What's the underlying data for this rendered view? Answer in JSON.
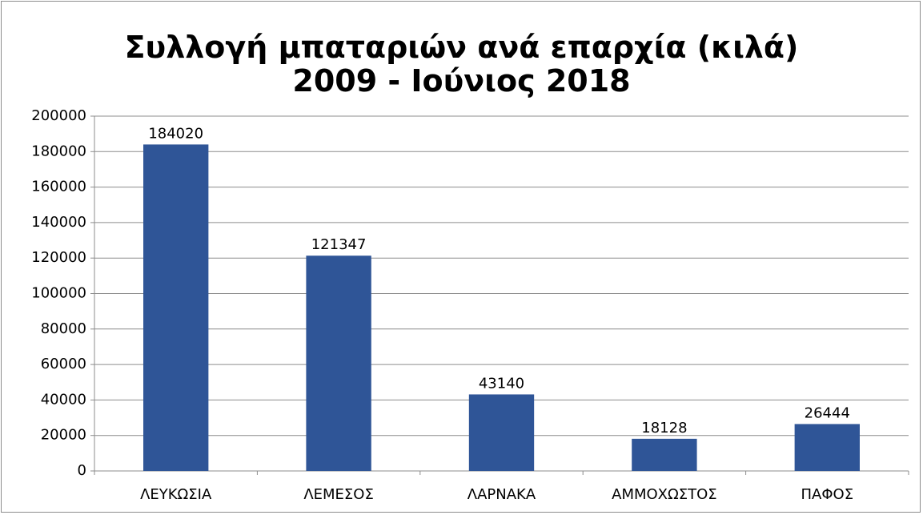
{
  "chart_data": {
    "type": "bar",
    "title": "Συλλογή μπαταριών ανά επαρχία (κιλά) 2009 - Ιούνιος 2018",
    "categories": [
      "ΛΕΥΚΩΣΙΑ",
      "ΛΕΜΕΣΟΣ",
      "ΛΑΡΝΑΚΑ",
      "ΑΜΜΟΧΩΣΤΟΣ",
      "ΠΑΦΟΣ"
    ],
    "values": [
      184020,
      121347,
      43140,
      18128,
      26444
    ],
    "color": "#2f5597",
    "ylim": [
      0,
      200000
    ],
    "yticks": [
      0,
      20000,
      40000,
      60000,
      80000,
      100000,
      120000,
      140000,
      160000,
      180000,
      200000
    ],
    "grid": true
  }
}
